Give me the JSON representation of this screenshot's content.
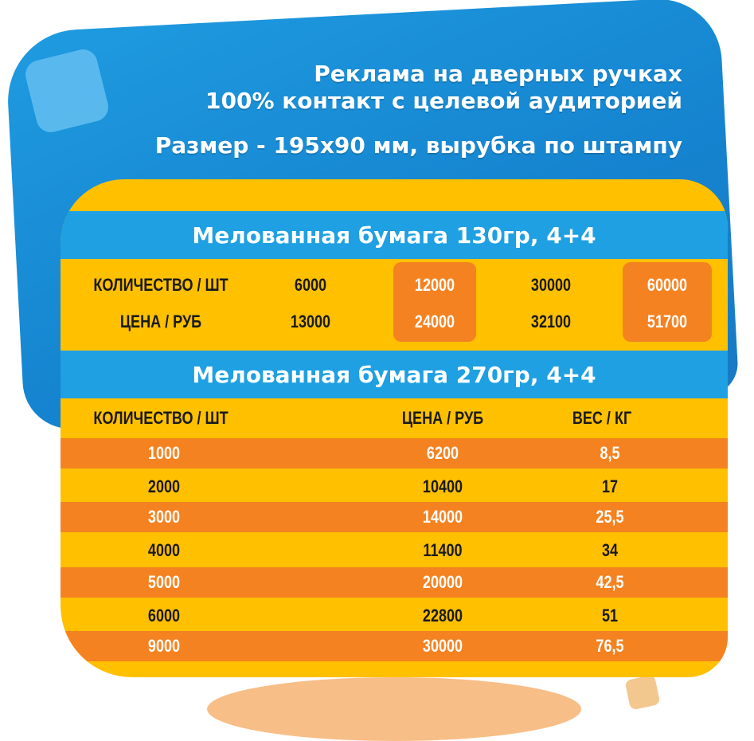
{
  "headings": {
    "line1": "Реклама на дверных ручках",
    "line2": "100% контакт с целевой аудиторией",
    "size": "Размер - 195х90 мм, вырубка по штампу"
  },
  "section1": {
    "title": "Мелованная бумага 130гр, 4+4",
    "quantity_label": "КОЛИЧЕСТВО / ШТ",
    "price_label": "ЦЕНА / РУБ",
    "quantities": [
      "6000",
      "12000",
      "30000",
      "60000"
    ],
    "prices": [
      "13000",
      "24000",
      "32100",
      "51700"
    ]
  },
  "section2": {
    "title": "Мелованная бумага 270гр, 4+4",
    "headers": [
      "КОЛИЧЕСТВО / ШТ",
      "ЦЕНА / РУБ",
      "ВЕС / КГ"
    ],
    "rows": [
      [
        "1000",
        "6200",
        "8,5"
      ],
      [
        "2000",
        "10400",
        "17"
      ],
      [
        "3000",
        "14000",
        "25,5"
      ],
      [
        "4000",
        "11400",
        "34"
      ],
      [
        "5000",
        "20000",
        "42,5"
      ],
      [
        "6000",
        "22800",
        "51"
      ],
      [
        "9000",
        "30000",
        "76,5"
      ]
    ]
  },
  "colors": {
    "blue": "#1ea0e3",
    "yellow": "#ffc000",
    "orange": "#f58220"
  }
}
